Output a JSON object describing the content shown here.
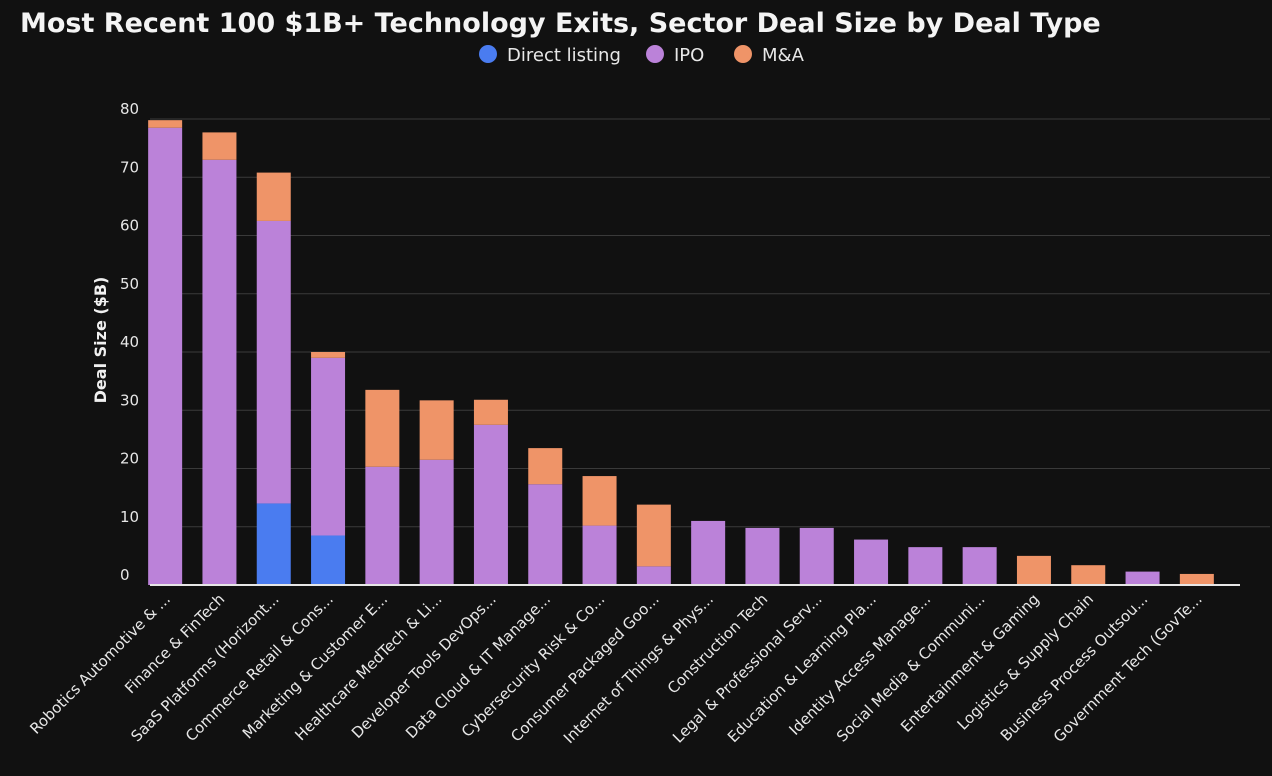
{
  "chart_data": {
    "type": "bar",
    "stacked": true,
    "title": "Most Recent 100 $1B+ Technology Exits, Sector Deal Size by Deal Type",
    "xlabel": "",
    "ylabel": "Deal Size ($B)",
    "ylim": [
      0,
      80
    ],
    "yticks": [
      0,
      10,
      20,
      30,
      40,
      50,
      60,
      70,
      80
    ],
    "grid": true,
    "legend_position": "top-center",
    "categories": [
      "Robotics Automotive & ...",
      "Finance & FinTech",
      "SaaS Platforms (Horizont...",
      "Commerce Retail & Cons...",
      "Marketing & Customer E...",
      "Healthcare MedTech & Li...",
      "Developer Tools DevOps...",
      "Data Cloud & IT Manage...",
      "Cybersecurity Risk & Co...",
      "Consumer Packaged Goo...",
      "Internet of Things & Phys...",
      "Construction Tech",
      "Legal & Professional Serv...",
      "Education & Learning Pla...",
      "Identity Access Manage...",
      "Social Media & Communi...",
      "Entertainment & Gaming",
      "Logistics & Supply Chain",
      "Business Process Outsou...",
      "Government Tech (GovTe..."
    ],
    "series": [
      {
        "name": "Direct listing",
        "color": "#4a7cf0",
        "values": [
          0,
          0,
          14,
          8.5,
          0,
          0,
          0,
          0,
          0,
          0,
          0,
          0,
          0,
          0,
          0,
          0,
          0,
          0,
          0,
          0
        ]
      },
      {
        "name": "IPO",
        "color": "#bb82d9",
        "values": [
          78.5,
          73,
          48.5,
          30.5,
          20.3,
          21.5,
          27.5,
          17.3,
          10.2,
          3.2,
          11,
          9.8,
          9.8,
          7.8,
          6.5,
          6.5,
          0,
          0,
          2.3,
          0
        ]
      },
      {
        "name": "M&A",
        "color": "#ef9468",
        "values": [
          1.3,
          4.7,
          8.3,
          1,
          13.2,
          10.2,
          4.3,
          6.2,
          8.5,
          10.6,
          0,
          0,
          0,
          0,
          0,
          0,
          5,
          3.4,
          0,
          1.9
        ]
      }
    ]
  }
}
